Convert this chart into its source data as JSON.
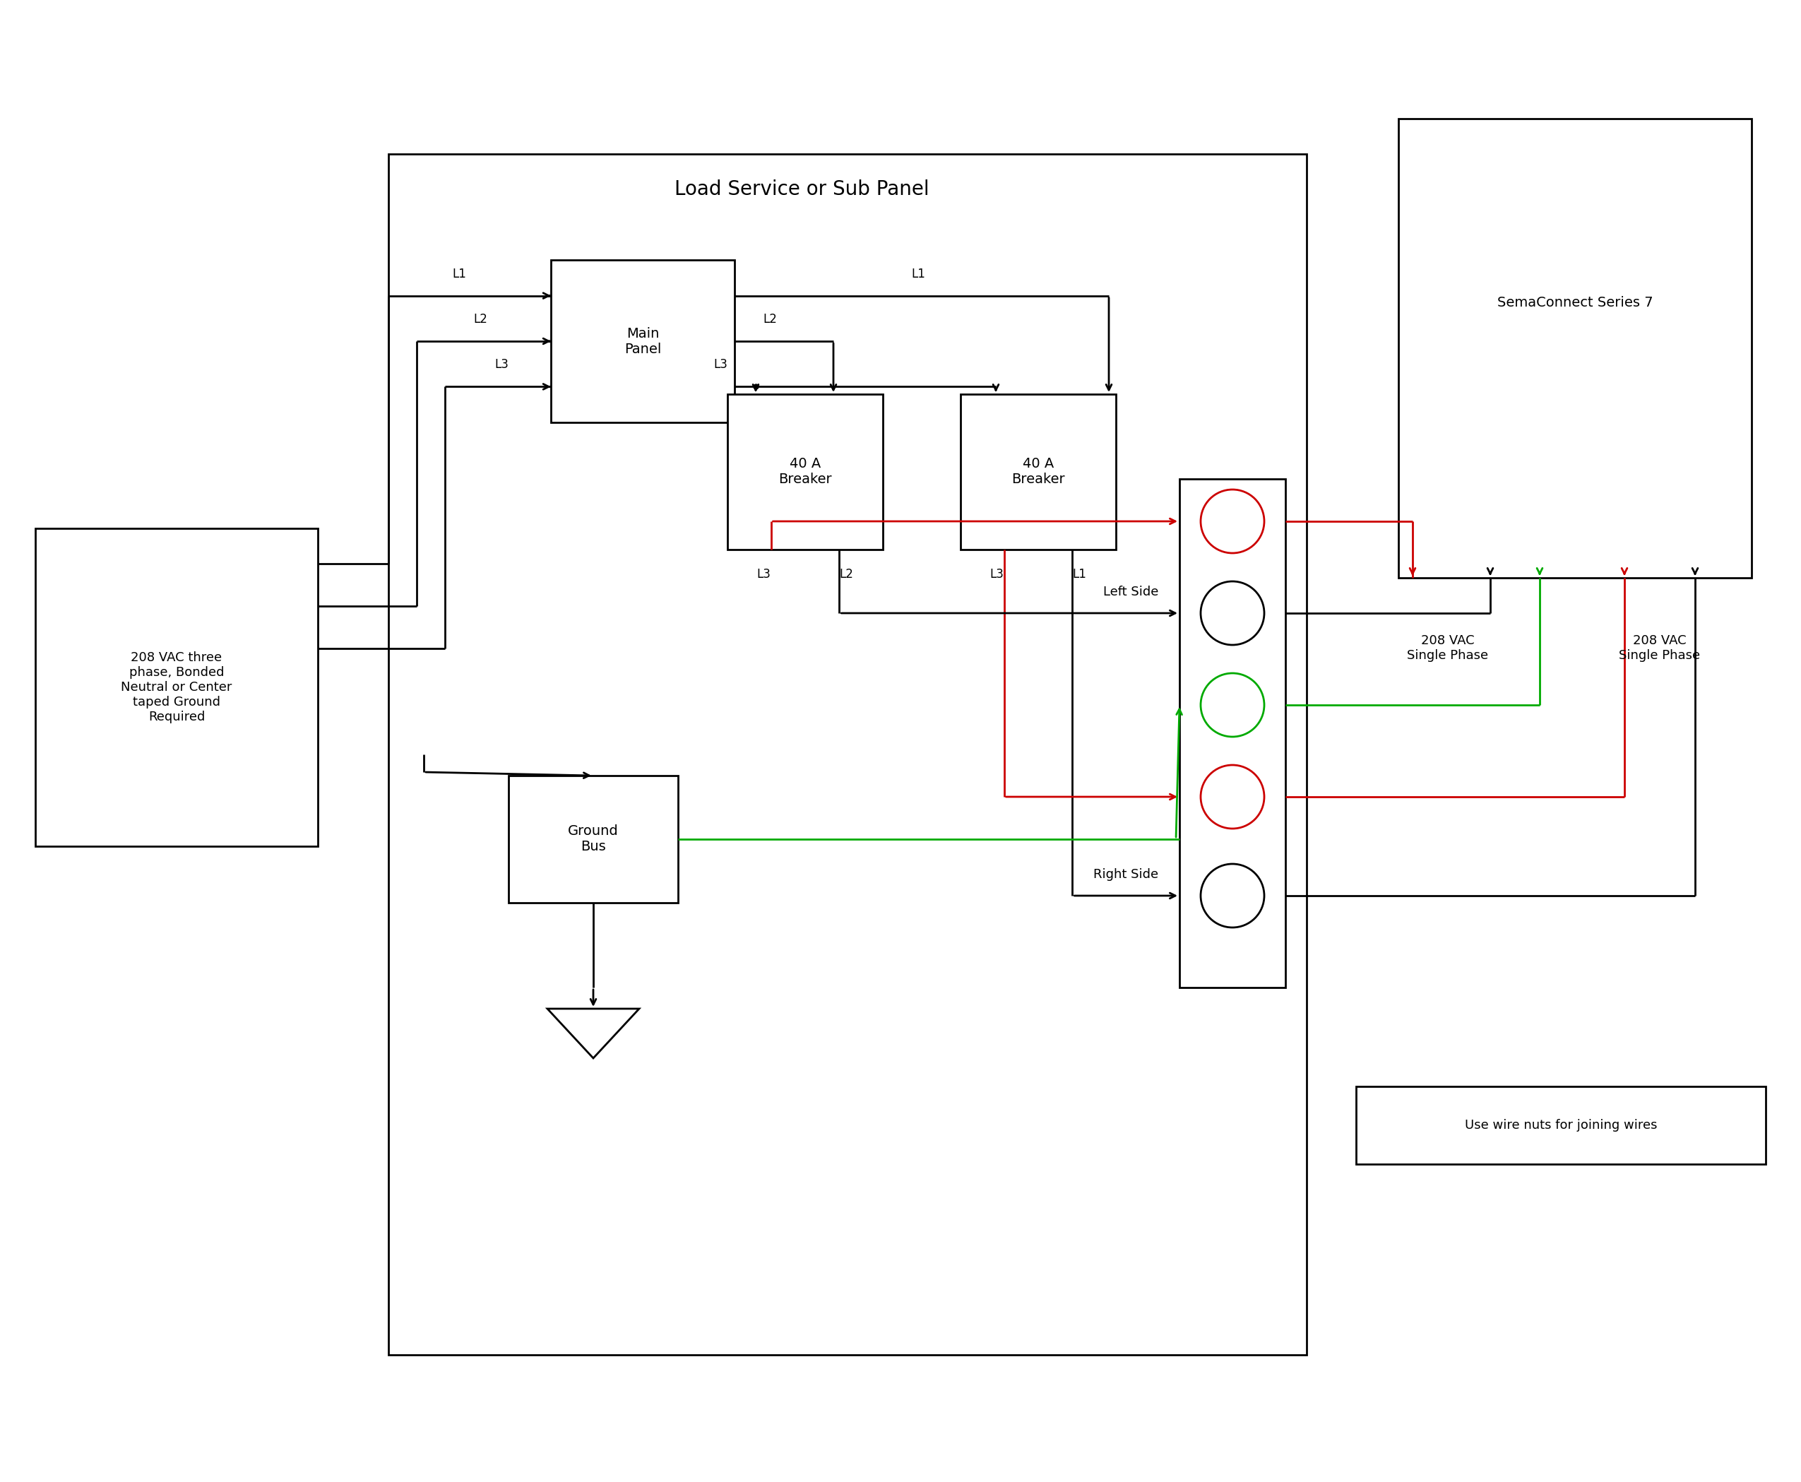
{
  "bg_color": "#ffffff",
  "black": "#000000",
  "red": "#cc0000",
  "green": "#00aa00",
  "title_panel": "Load Service or Sub Panel",
  "title_sema": "SemaConnect Series 7",
  "lbl_208vac": "208 VAC three\nphase, Bonded\nNeutral or Center\ntaped Ground\nRequired",
  "lbl_ground": "Ground\nBus",
  "lbl_main": "Main\nPanel",
  "lbl_breaker": "40 A\nBreaker",
  "lbl_left": "Left Side",
  "lbl_right": "Right Side",
  "lbl_208s1": "208 VAC\nSingle Phase",
  "lbl_208s2": "208 VAC\nSingle Phase",
  "lbl_wirenuts": "Use wire nuts for joining wires",
  "fs_title": 20,
  "fs_label": 14,
  "fs_small": 13,
  "fs_tag": 12,
  "lw": 2.0
}
